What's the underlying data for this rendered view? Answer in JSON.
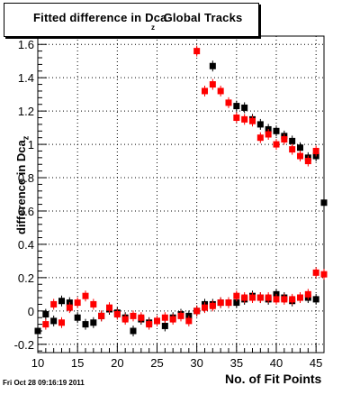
{
  "chart_data": {
    "type": "scatter",
    "title": "Fitted difference in Dca",
    "title_subscript": "z",
    "title_suffix": "Global Tracks",
    "xlabel": "No. of Fit Points",
    "ylabel": "difference in Dca",
    "ylabel_subscript": "z",
    "xlim": [
      10,
      46
    ],
    "ylim": [
      -0.25,
      1.65
    ],
    "x_ticks": [
      10,
      15,
      20,
      25,
      30,
      35,
      40,
      45
    ],
    "y_ticks": [
      -0.2,
      0,
      0.2,
      0.4,
      0.6,
      0.8,
      1,
      1.2,
      1.4,
      1.6
    ],
    "grid": true,
    "series": [
      {
        "color": "#000000",
        "marker": "square",
        "points": [
          [
            10,
            -0.12
          ],
          [
            11,
            -0.02
          ],
          [
            12,
            -0.06
          ],
          [
            13,
            0.06
          ],
          [
            14,
            0.05
          ],
          [
            15,
            -0.04
          ],
          [
            16,
            -0.08
          ],
          [
            17,
            -0.07
          ],
          [
            18,
            -0.03
          ],
          [
            19,
            0.01
          ],
          [
            20,
            -0.01
          ],
          [
            21,
            -0.04
          ],
          [
            22,
            -0.12
          ],
          [
            23,
            -0.05
          ],
          [
            24,
            -0.07
          ],
          [
            25,
            -0.06
          ],
          [
            26,
            -0.09
          ],
          [
            27,
            -0.04
          ],
          [
            28,
            -0.02
          ],
          [
            29,
            -0.03
          ],
          [
            30,
            0.0
          ],
          [
            31,
            0.04
          ],
          [
            32,
            0.04
          ],
          [
            33,
            0.05
          ],
          [
            34,
            0.05
          ],
          [
            35,
            0.05
          ],
          [
            36,
            0.07
          ],
          [
            37,
            0.09
          ],
          [
            38,
            0.08
          ],
          [
            39,
            0.07
          ],
          [
            40,
            0.1
          ],
          [
            41,
            0.08
          ],
          [
            42,
            0.06
          ],
          [
            43,
            0.08
          ],
          [
            44,
            0.08
          ],
          [
            45,
            0.07
          ],
          [
            46,
            0.65
          ],
          [
            32,
            1.47
          ],
          [
            35,
            1.23
          ],
          [
            36,
            1.22
          ],
          [
            37,
            1.15
          ],
          [
            38,
            1.12
          ],
          [
            39,
            1.09
          ],
          [
            40,
            1.08
          ],
          [
            41,
            1.05
          ],
          [
            42,
            1.02
          ],
          [
            43,
            0.98
          ],
          [
            44,
            0.92
          ],
          [
            45,
            0.93
          ]
        ]
      },
      {
        "color": "#ff0000",
        "marker": "square",
        "points": [
          [
            11,
            -0.08
          ],
          [
            12,
            0.04
          ],
          [
            13,
            -0.07
          ],
          [
            14,
            0.02
          ],
          [
            15,
            0.05
          ],
          [
            16,
            0.09
          ],
          [
            17,
            0.04
          ],
          [
            18,
            -0.03
          ],
          [
            19,
            0.02
          ],
          [
            20,
            -0.02
          ],
          [
            21,
            -0.05
          ],
          [
            22,
            -0.03
          ],
          [
            23,
            -0.04
          ],
          [
            24,
            -0.08
          ],
          [
            25,
            -0.06
          ],
          [
            26,
            -0.04
          ],
          [
            27,
            -0.05
          ],
          [
            28,
            -0.03
          ],
          [
            29,
            -0.06
          ],
          [
            30,
            0.0
          ],
          [
            31,
            0.02
          ],
          [
            32,
            0.03
          ],
          [
            33,
            0.05
          ],
          [
            34,
            0.05
          ],
          [
            35,
            0.09
          ],
          [
            36,
            0.08
          ],
          [
            37,
            0.08
          ],
          [
            38,
            0.08
          ],
          [
            39,
            0.08
          ],
          [
            40,
            0.07
          ],
          [
            41,
            0.07
          ],
          [
            42,
            0.07
          ],
          [
            43,
            0.08
          ],
          [
            44,
            0.1
          ],
          [
            45,
            0.23
          ],
          [
            46,
            0.22
          ],
          [
            30,
            1.56
          ],
          [
            31,
            1.32
          ],
          [
            32,
            1.36
          ],
          [
            33,
            1.32
          ],
          [
            34,
            1.25
          ],
          [
            35,
            1.16
          ],
          [
            36,
            1.15
          ],
          [
            37,
            1.14
          ],
          [
            38,
            1.04
          ],
          [
            39,
            1.06
          ],
          [
            40,
            1.0
          ],
          [
            41,
            1.03
          ],
          [
            42,
            0.97
          ],
          [
            43,
            0.93
          ],
          [
            44,
            0.9
          ],
          [
            45,
            0.96
          ]
        ]
      }
    ]
  },
  "footer": {
    "timestamp": "Fri Oct 28 09:16:19 2011"
  }
}
